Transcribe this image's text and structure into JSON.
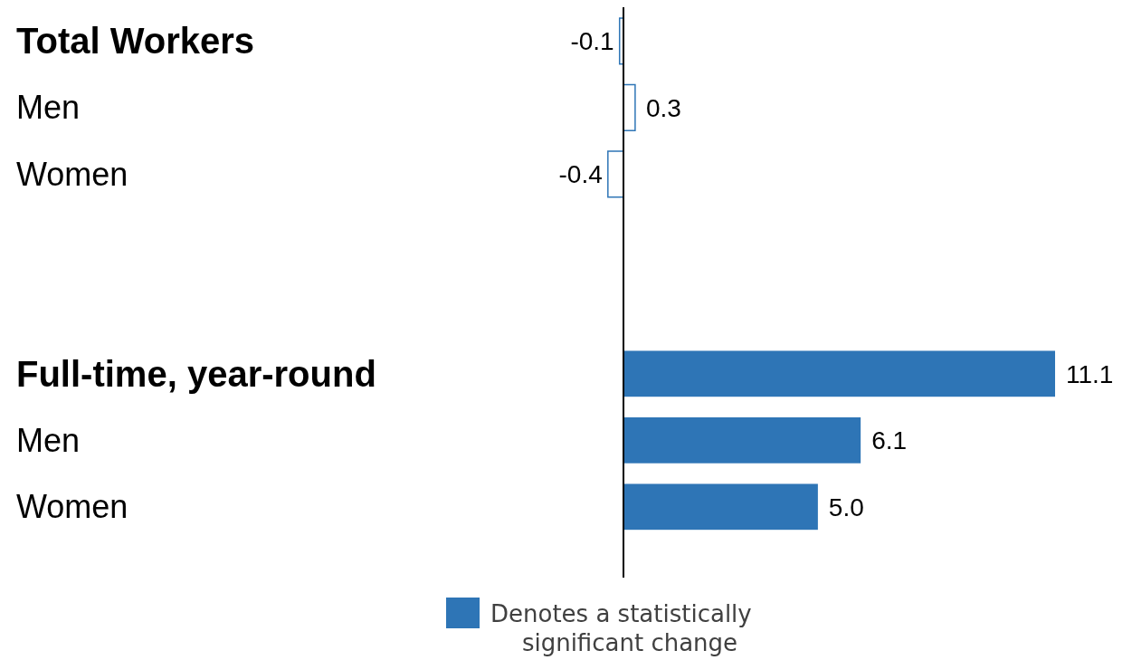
{
  "chart_data": {
    "type": "bar",
    "orientation": "horizontal",
    "categories": [
      "Total Workers",
      "Men",
      "Women",
      null,
      null,
      "Full-time, year-round",
      "Men",
      "Women"
    ],
    "series": [
      {
        "color": "#2e75b6",
        "values": [
          -0.1,
          0.3,
          -0.4,
          null,
          null,
          null,
          null,
          null
        ],
        "value_labels": [
          "-0.1",
          "0.3",
          "-0.4",
          null,
          null,
          null,
          null,
          null
        ]
      },
      {
        "name": "Denotes a statistically significant change",
        "color": "#2e75b6",
        "values": [
          null,
          null,
          null,
          null,
          null,
          11.1,
          6.1,
          5.0
        ],
        "value_labels": [
          null,
          null,
          null,
          null,
          null,
          "11.1",
          "6.1",
          "5.0"
        ]
      }
    ],
    "legend": "bottom"
  }
}
